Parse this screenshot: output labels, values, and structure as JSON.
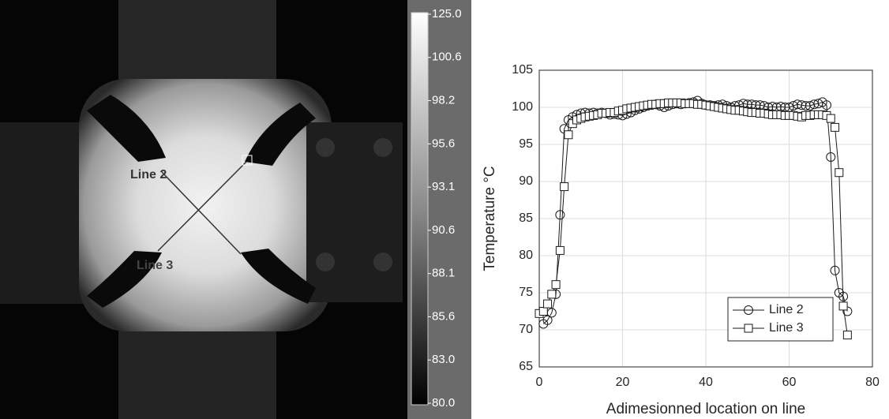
{
  "thermal_image": {
    "labels": [
      "Line 2",
      "Line 3"
    ],
    "colorbar_ticks": [
      {
        "value": 125,
        "label": "125.0"
      },
      100.6,
      98.2,
      95.6,
      93.1,
      90.6,
      88.1,
      85.6,
      {
        "value": 83,
        "label": "83.0"
      },
      {
        "value": 80,
        "label": "80.0"
      }
    ]
  },
  "chart_data": {
    "type": "line",
    "xlabel": "Adimesionned location on line",
    "ylabel": "Temperature °C",
    "xlim": [
      0,
      80
    ],
    "xticks": [
      0,
      20,
      40,
      60,
      80
    ],
    "ylim": [
      65,
      105
    ],
    "yticks": [
      65,
      70,
      75,
      80,
      85,
      90,
      95,
      100,
      105
    ],
    "grid": true,
    "legend": "lower right",
    "series": [
      {
        "name": "Line 2",
        "color": "#1a1a1a",
        "marker": "circle",
        "x": [
          1,
          2,
          3,
          4,
          5,
          6,
          7,
          8,
          9,
          10,
          11,
          12,
          13,
          14,
          15,
          16,
          17,
          18,
          19,
          20,
          21,
          22,
          23,
          24,
          25,
          26,
          27,
          28,
          29,
          30,
          31,
          32,
          33,
          34,
          35,
          36,
          37,
          38,
          39,
          40,
          41,
          42,
          43,
          44,
          45,
          46,
          47,
          48,
          49,
          50,
          51,
          52,
          53,
          54,
          55,
          56,
          57,
          58,
          59,
          60,
          61,
          62,
          63,
          64,
          65,
          66,
          67,
          68,
          69,
          70,
          71,
          72,
          73,
          74
        ],
        "values": [
          70.8,
          71.3,
          72.3,
          74.8,
          85.5,
          97.1,
          98.3,
          98.7,
          99.0,
          99.2,
          99.3,
          99.2,
          99.3,
          99.2,
          99.3,
          99.2,
          99.0,
          99.1,
          99.0,
          98.9,
          99.1,
          99.3,
          99.6,
          99.8,
          100.0,
          100.2,
          100.3,
          100.4,
          100.2,
          100.0,
          100.2,
          100.4,
          100.5,
          100.4,
          100.5,
          100.6,
          100.7,
          100.9,
          100.5,
          100.3,
          100.3,
          100.2,
          100.3,
          100.4,
          100.2,
          100.0,
          100.2,
          100.3,
          100.5,
          100.4,
          100.4,
          100.3,
          100.3,
          100.2,
          100.0,
          100.1,
          100.0,
          100.1,
          100.0,
          100.0,
          100.2,
          100.4,
          100.3,
          100.2,
          100.2,
          100.4,
          100.5,
          100.7,
          100.3,
          93.3,
          78.0,
          75.0,
          74.5,
          72.5
        ]
      },
      {
        "name": "Line 3",
        "color": "#1a1a1a",
        "marker": "square",
        "x": [
          0,
          1,
          2,
          3,
          4,
          5,
          6,
          7,
          8,
          9,
          10,
          11,
          12,
          13,
          14,
          15,
          16,
          17,
          18,
          19,
          20,
          21,
          22,
          23,
          24,
          25,
          26,
          27,
          28,
          29,
          30,
          31,
          32,
          33,
          34,
          35,
          36,
          37,
          38,
          39,
          40,
          41,
          42,
          43,
          44,
          45,
          46,
          47,
          48,
          49,
          50,
          51,
          52,
          53,
          54,
          55,
          56,
          57,
          58,
          59,
          60,
          61,
          62,
          63,
          64,
          65,
          66,
          67,
          68,
          69,
          70,
          71,
          72,
          73,
          74
        ],
        "values": [
          72.2,
          72.5,
          73.5,
          74.8,
          76.1,
          80.7,
          89.3,
          96.3,
          97.8,
          98.3,
          98.5,
          98.7,
          98.8,
          98.9,
          99.0,
          99.2,
          99.2,
          99.3,
          99.3,
          99.5,
          99.6,
          99.8,
          99.9,
          100.0,
          100.1,
          100.2,
          100.3,
          100.4,
          100.4,
          100.5,
          100.5,
          100.6,
          100.6,
          100.6,
          100.6,
          100.5,
          100.5,
          100.5,
          100.4,
          100.4,
          100.3,
          100.2,
          100.1,
          100.0,
          99.9,
          99.8,
          99.7,
          99.6,
          99.6,
          99.5,
          99.4,
          99.3,
          99.3,
          99.2,
          99.2,
          99.1,
          99.0,
          99.0,
          99.0,
          98.9,
          98.9,
          98.9,
          98.8,
          98.7,
          98.9,
          98.9,
          99.0,
          99.0,
          99.0,
          98.9,
          98.5,
          97.3,
          91.2,
          73.2,
          69.3
        ]
      }
    ]
  }
}
